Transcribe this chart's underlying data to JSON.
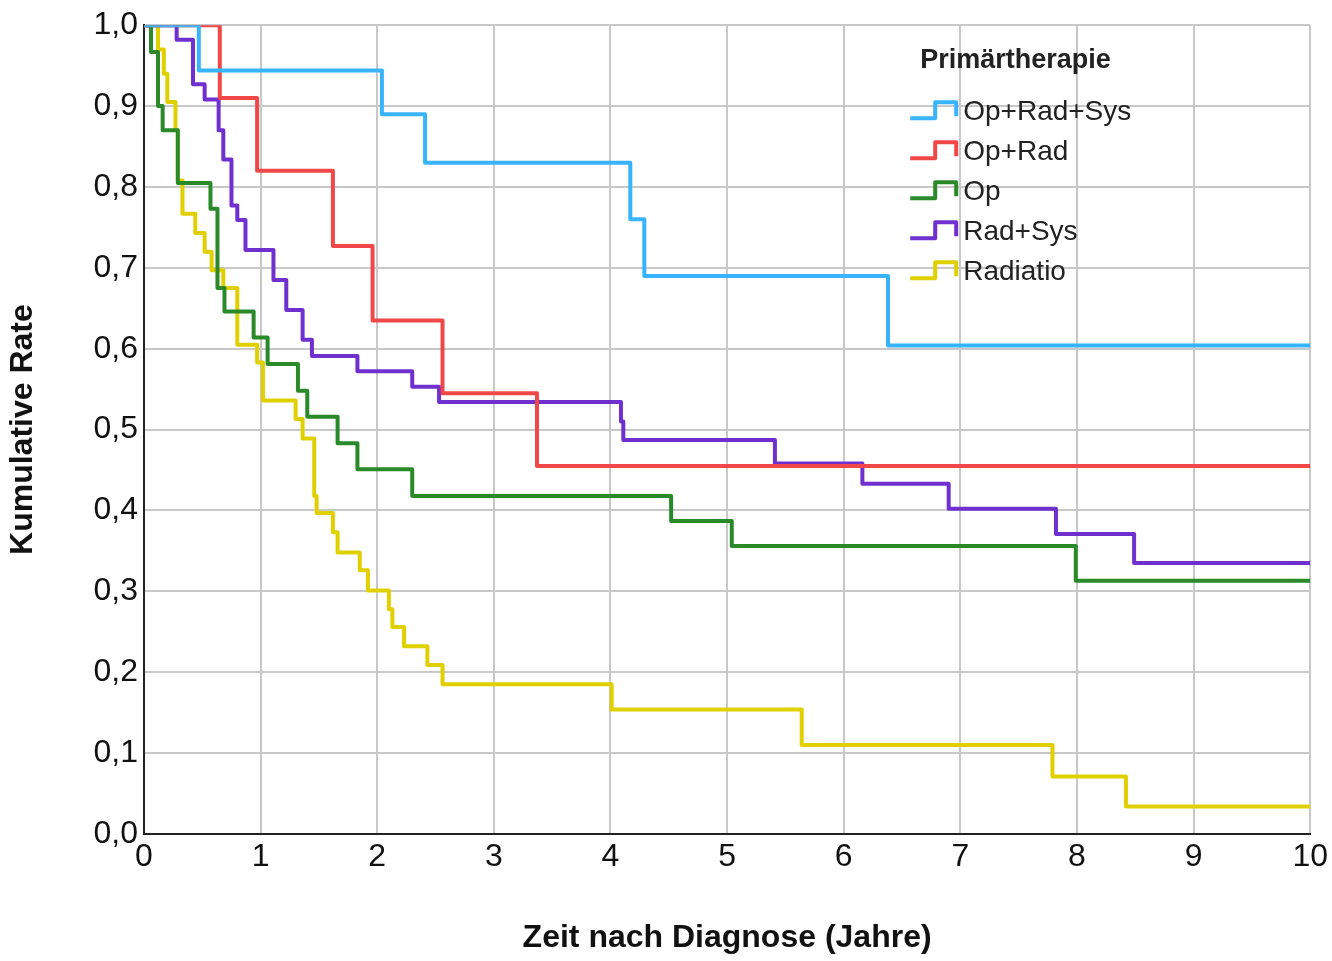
{
  "chart_data": {
    "type": "step",
    "xlabel": "Zeit nach Diagnose (Jahre)",
    "ylabel": "Kumulative Rate",
    "legend_title": "Primärtherapie",
    "legend": "top right",
    "grid": true,
    "line_style": "solid",
    "marker": "none",
    "xlim": [
      0,
      10
    ],
    "xticks": [
      0,
      1,
      2,
      3,
      4,
      5,
      6,
      7,
      8,
      9,
      10
    ],
    "ylim": [
      0,
      1
    ],
    "yticks": [
      {
        "value": 0,
        "label": "0,0"
      },
      {
        "value": 0.1,
        "label": "0,1"
      },
      {
        "value": 0.2,
        "label": "0,2"
      },
      {
        "value": 0.3,
        "label": "0,3"
      },
      {
        "value": 0.4,
        "label": "0,4"
      },
      {
        "value": 0.5,
        "label": "0,5"
      },
      {
        "value": 0.6,
        "label": "0,6"
      },
      {
        "value": 0.7,
        "label": "0,7"
      },
      {
        "value": 0.8,
        "label": "0,8"
      },
      {
        "value": 0.9,
        "label": "0,9"
      },
      {
        "value": 1,
        "label": "1,0"
      }
    ],
    "series": [
      {
        "name": "Op+Rad+Sys",
        "color": "#38b4ff",
        "x": [
          0,
          0.47,
          2.04,
          2.41,
          4.17,
          4.29,
          6.38,
          10
        ],
        "values": [
          1,
          0.944,
          0.89,
          0.83,
          0.76,
          0.69,
          0.604,
          0.604
        ]
      },
      {
        "name": "Op+Rad",
        "color": "#f04848",
        "x": [
          0,
          0.65,
          0.97,
          1.62,
          1.96,
          2.56,
          3.37,
          10
        ],
        "values": [
          1,
          0.91,
          0.82,
          0.727,
          0.635,
          0.545,
          0.455,
          0.455
        ]
      },
      {
        "name": "Op",
        "color": "#2a8a2a",
        "x": [
          0,
          0.06,
          0.12,
          0.16,
          0.29,
          0.57,
          0.63,
          0.69,
          0.94,
          1.06,
          1.32,
          1.4,
          1.66,
          1.83,
          2.3,
          4.52,
          5.04,
          7.99,
          10
        ],
        "values": [
          1,
          0.967,
          0.9,
          0.87,
          0.805,
          0.773,
          0.675,
          0.646,
          0.614,
          0.581,
          0.548,
          0.516,
          0.483,
          0.451,
          0.418,
          0.387,
          0.356,
          0.313,
          0.313
        ]
      },
      {
        "name": "Rad+Sys",
        "color": "#7030d0",
        "x": [
          0,
          0.28,
          0.42,
          0.52,
          0.64,
          0.68,
          0.75,
          0.8,
          0.87,
          1.11,
          1.22,
          1.36,
          1.44,
          1.83,
          2.3,
          2.53,
          4.09,
          4.11,
          5.41,
          6.16,
          6.9,
          7.82,
          8.49,
          10
        ],
        "values": [
          1,
          0.982,
          0.927,
          0.908,
          0.87,
          0.834,
          0.777,
          0.759,
          0.722,
          0.685,
          0.648,
          0.611,
          0.591,
          0.572,
          0.553,
          0.534,
          0.51,
          0.487,
          0.458,
          0.433,
          0.402,
          0.371,
          0.335,
          0.335
        ]
      },
      {
        "name": "Radiatio",
        "color": "#e0d000",
        "x": [
          0,
          0.12,
          0.17,
          0.2,
          0.27,
          0.29,
          0.33,
          0.44,
          0.52,
          0.58,
          0.68,
          0.8,
          0.97,
          1.02,
          1.3,
          1.36,
          1.46,
          1.48,
          1.62,
          1.66,
          1.85,
          1.92,
          2.1,
          2.13,
          2.23,
          2.43,
          2.56,
          4.01,
          5.64,
          7.79,
          8.42,
          10
        ],
        "values": [
          1,
          0.97,
          0.94,
          0.905,
          0.87,
          0.808,
          0.767,
          0.743,
          0.72,
          0.697,
          0.675,
          0.605,
          0.583,
          0.536,
          0.513,
          0.489,
          0.418,
          0.397,
          0.373,
          0.348,
          0.326,
          0.301,
          0.278,
          0.256,
          0.232,
          0.209,
          0.185,
          0.154,
          0.11,
          0.071,
          0.034,
          0.034
        ]
      }
    ]
  }
}
